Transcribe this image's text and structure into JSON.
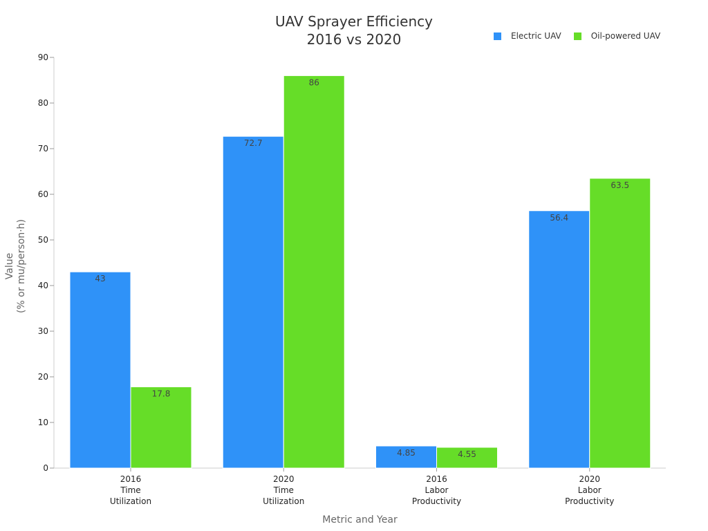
{
  "chart_data": {
    "type": "bar",
    "title": [
      "UAV Sprayer Efficiency",
      "2016 vs 2020"
    ],
    "xlabel": "Metric and Year",
    "ylabel": [
      "Value",
      "(% or mu/person·h)"
    ],
    "categories": [
      [
        "2016",
        "Time",
        "Utilization"
      ],
      [
        "2020",
        "Time",
        "Utilization"
      ],
      [
        "2016",
        "Labor",
        "Productivity"
      ],
      [
        "2020",
        "Labor",
        "Productivity"
      ]
    ],
    "series": [
      {
        "name": "Electric UAV",
        "color": "#2f92f8",
        "values": [
          43,
          72.7,
          4.85,
          56.4
        ]
      },
      {
        "name": "Oil-powered UAV",
        "color": "#66dd28",
        "values": [
          17.8,
          86,
          4.55,
          63.5
        ]
      }
    ],
    "ylim": [
      0,
      90
    ],
    "yticks": [
      0,
      10,
      20,
      30,
      40,
      50,
      60,
      70,
      80,
      90
    ],
    "grid": false,
    "legend_position": "top-right"
  }
}
